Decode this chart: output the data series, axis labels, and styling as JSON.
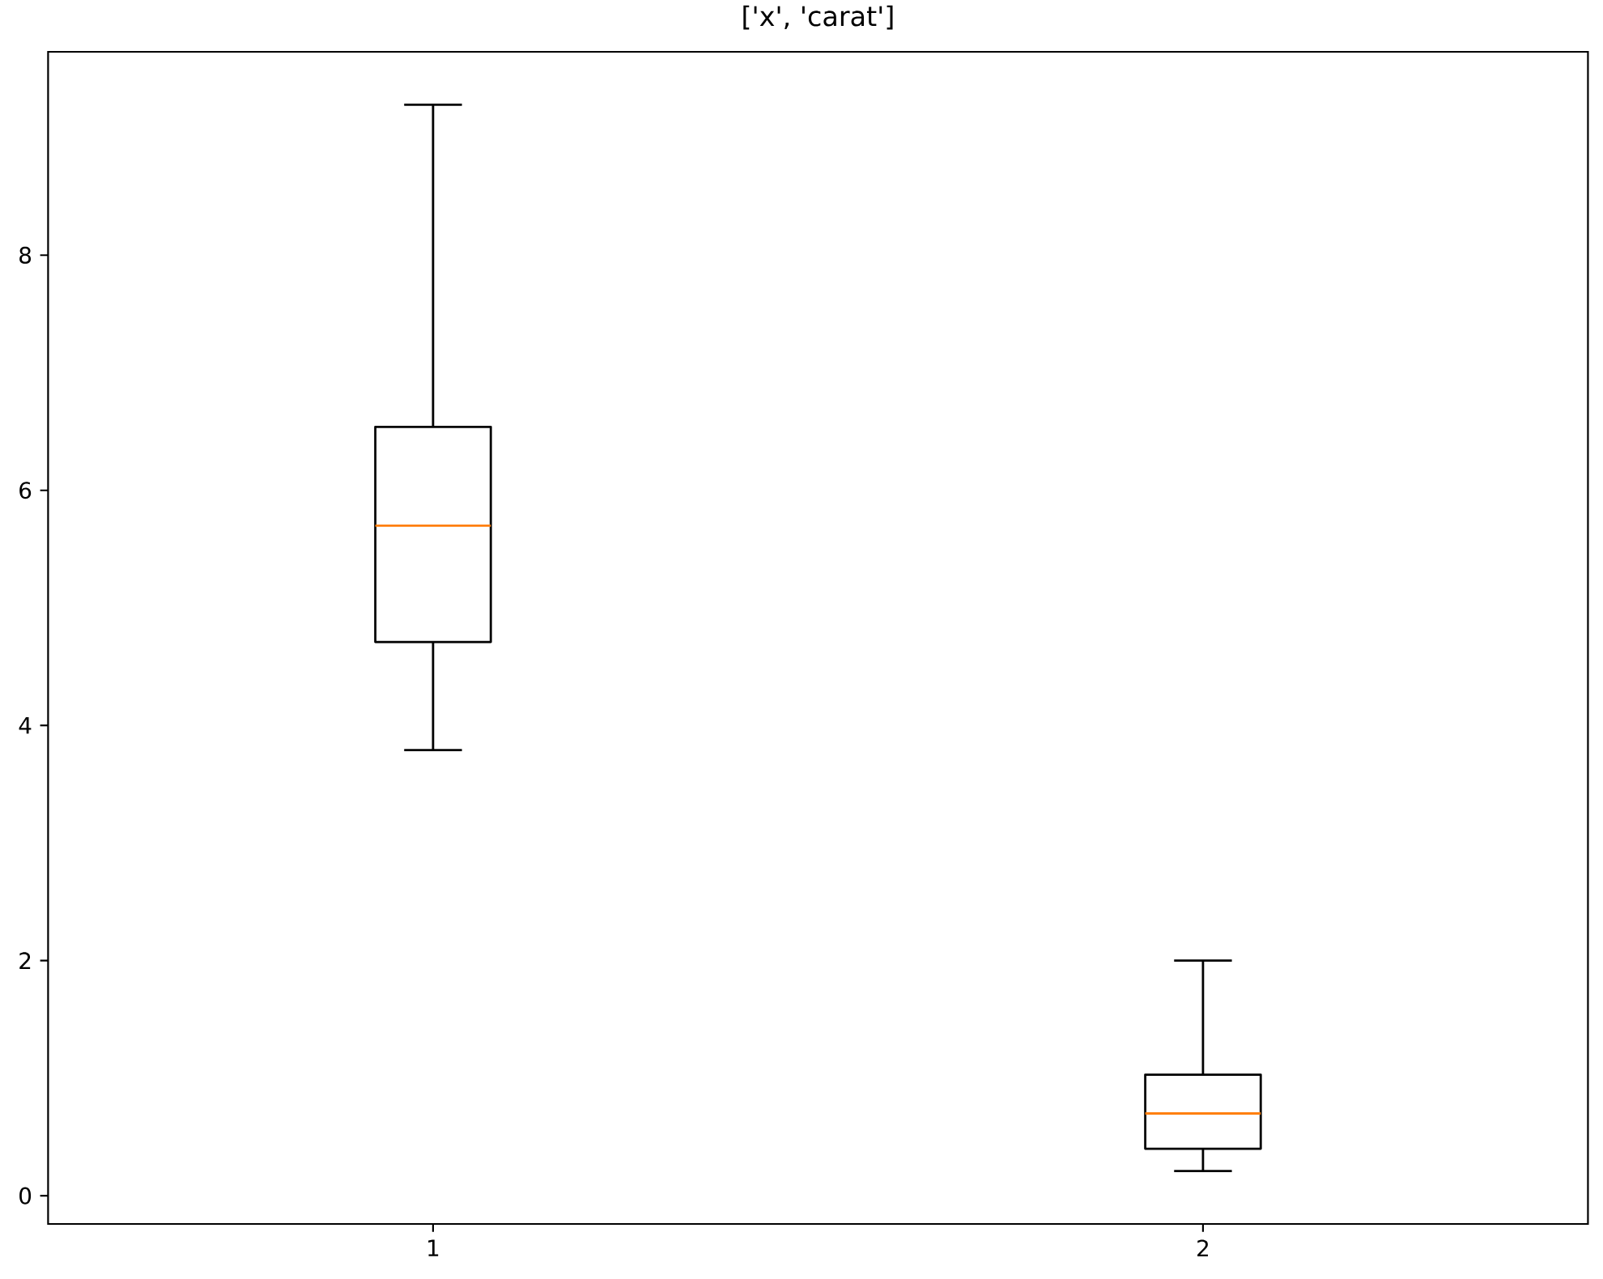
{
  "chart_data": {
    "type": "box",
    "title": "['x', 'carat']",
    "categories": [
      "1",
      "2"
    ],
    "color": "#000000",
    "boxes": [
      {
        "low": 3.79,
        "q1": 4.71,
        "median": 5.7,
        "q3": 6.54,
        "high": 9.28
      },
      {
        "low": 0.21,
        "q1": 0.4,
        "median": 0.7,
        "q3": 1.03,
        "high": 2.0
      }
    ],
    "ylim": [
      -0.24,
      9.73
    ],
    "yticks": [
      0,
      2,
      4,
      6,
      8
    ]
  }
}
